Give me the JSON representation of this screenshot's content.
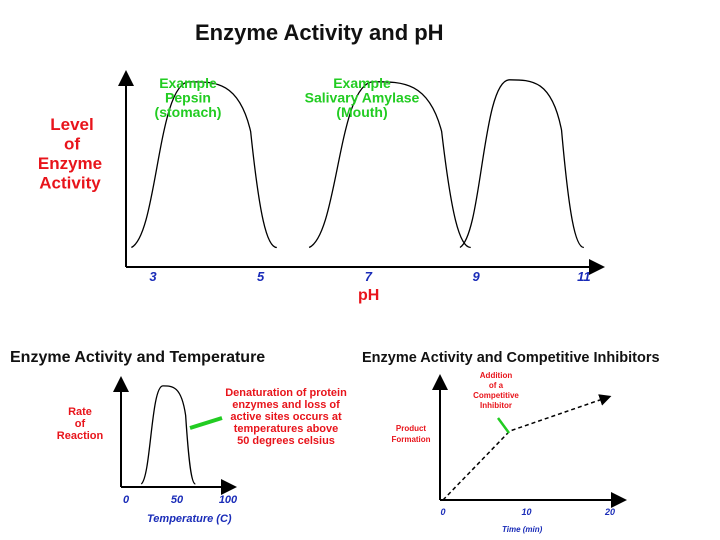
{
  "chart_data": [
    {
      "type": "line",
      "title": "Enzyme Activity and pH",
      "xlabel": "pH",
      "ylabel": [
        "Level",
        "of",
        "Enzyme",
        "Activity"
      ],
      "x_ticks": [
        "3",
        "5",
        "7",
        "9",
        "11"
      ],
      "xlim": [
        2.5,
        11.3
      ],
      "ylim": [
        0,
        1
      ],
      "series": [
        {
          "optimum_range": [
            2.6,
            5.3
          ],
          "peak": 0.95
        },
        {
          "optimum_range": [
            5.9,
            8.9
          ],
          "peak": 0.95
        },
        {
          "optimum_range": [
            8.7,
            11.0
          ],
          "peak": 0.96
        }
      ],
      "annotations": [
        {
          "lines": [
            "Example",
            "Pepsin",
            "(stomach)"
          ]
        },
        {
          "lines": [
            "Example",
            "Salivary Amylase",
            "(Mouth)"
          ]
        }
      ],
      "grid": false
    },
    {
      "type": "line",
      "title": "Enzyme Activity and Temperature",
      "xlabel": "Temperature (C)",
      "ylabel": [
        "Rate",
        "of",
        "Reaction"
      ],
      "x_ticks": [
        "0",
        "50",
        "100"
      ],
      "xlim": [
        0,
        100
      ],
      "ylim": [
        0,
        1
      ],
      "series": [
        {
          "optimum_range": [
            15,
            68
          ],
          "peak": 0.9
        }
      ],
      "annotations": [
        {
          "lines": [
            "Denaturation of protein",
            "enzymes and loss of",
            "active sites occurs at",
            "temperatures above",
            "50 degrees celsius"
          ]
        }
      ],
      "grid": false
    },
    {
      "type": "line",
      "title": "Enzyme Activity and Competitive Inhibitors",
      "xlabel": "Time (min)",
      "ylabel": [
        "Product",
        "Formation"
      ],
      "x_ticks": [
        "0",
        "10",
        "20"
      ],
      "xlim": [
        0,
        20
      ],
      "ylim": [
        0,
        1
      ],
      "series": [
        {
          "style": "dashed",
          "x": [
            0,
            4,
            8,
            16,
            20
          ],
          "y": [
            0,
            0.3,
            0.6,
            0.8,
            0.9
          ]
        }
      ],
      "annotations": [
        {
          "lines": [
            "Addition",
            "of a",
            "Competitive",
            "Inhibitor"
          ],
          "x": 8
        }
      ],
      "grid": false
    }
  ]
}
